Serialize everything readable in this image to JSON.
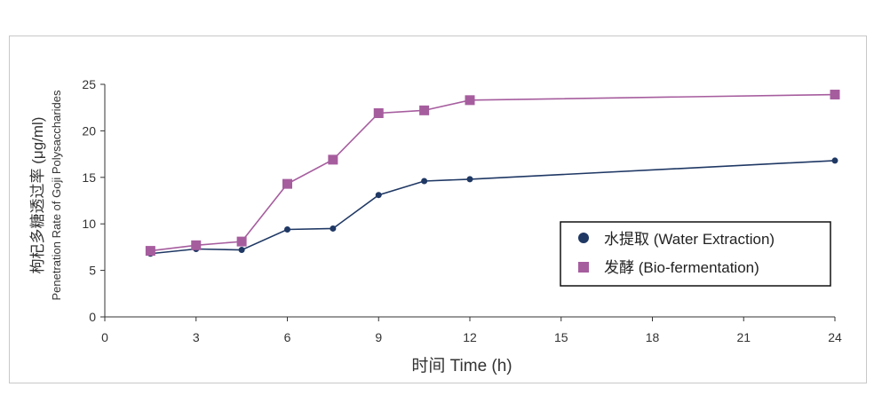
{
  "chart_data": {
    "type": "line",
    "title": "",
    "xlabel": "时间 Time (h)",
    "ylabel_cn": "枸杞多糖透过率 (μg/ml)",
    "ylabel_en": "Penetration Rate of Goji Polysaccharides",
    "x_ticks": [
      "0",
      "3",
      "6",
      "9",
      "12",
      "15",
      "18",
      "21",
      "24"
    ],
    "y_ticks": [
      "0",
      "5",
      "10",
      "15",
      "20",
      "25"
    ],
    "ylim": [
      0,
      25
    ],
    "x": [
      1.5,
      3,
      4.5,
      6,
      7.5,
      9,
      10.5,
      12,
      24
    ],
    "series": [
      {
        "name": "水提取 (Water Extraction)",
        "color": "#1f3864",
        "marker": "circle",
        "values": [
          6.8,
          7.3,
          7.2,
          9.4,
          9.5,
          13.1,
          14.6,
          14.8,
          16.8
        ]
      },
      {
        "name": "发酵 (Bio-fermentation)",
        "color": "#a65d9e",
        "marker": "square",
        "values": [
          7.1,
          7.7,
          8.1,
          14.3,
          16.9,
          21.9,
          22.2,
          23.3,
          23.9
        ]
      }
    ],
    "legend_position": "right",
    "grid": false
  }
}
